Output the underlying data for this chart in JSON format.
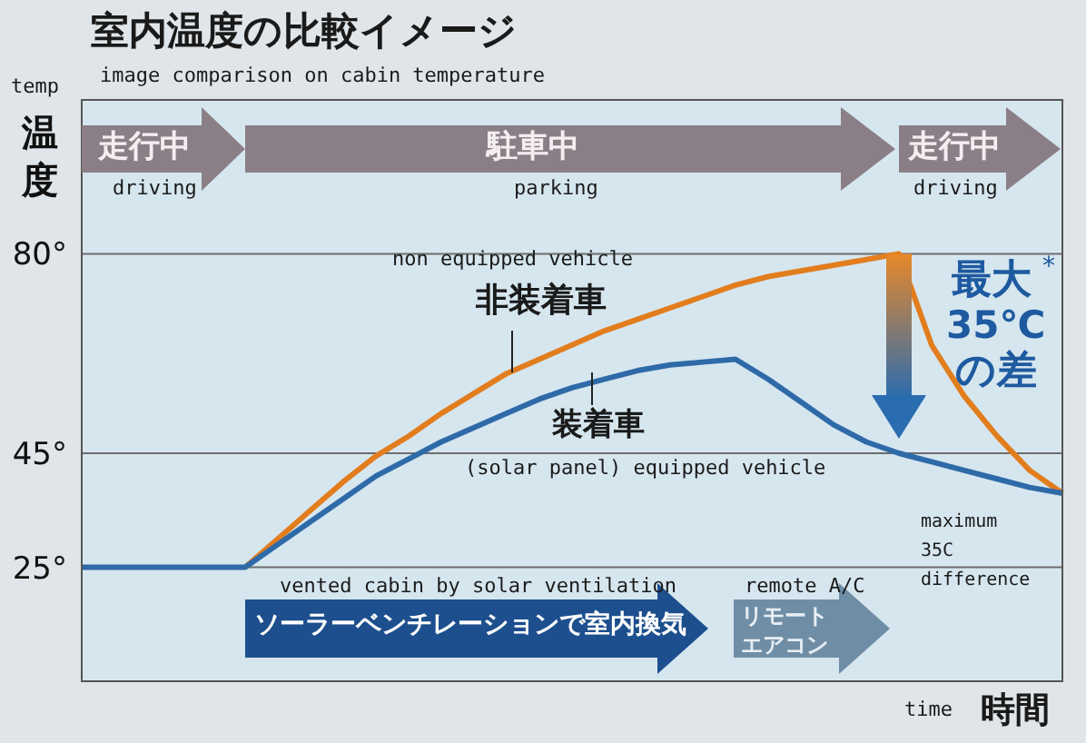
{
  "chart_data": {
    "type": "line",
    "title": "室内温度の比較イメージ",
    "subtitle": "image comparison on cabin temperature",
    "ylabel": "温度",
    "xlabel": "時間",
    "categories": [
      null,
      null,
      null,
      null,
      null,
      null,
      null,
      null,
      null,
      null,
      null,
      null,
      null,
      null,
      null,
      null,
      null,
      null,
      null,
      null,
      null,
      null,
      null,
      null,
      null,
      null,
      null,
      null,
      null,
      null,
      null
    ],
    "ylim": [
      5,
      107
    ],
    "yticks": [
      {
        "value": 25,
        "label": "25°"
      },
      {
        "value": 45,
        "label": "45°"
      },
      {
        "value": 80,
        "label": "80°"
      }
    ],
    "grid": "y",
    "legend": false,
    "marker": "none",
    "line_style": "solid",
    "series": [
      {
        "name": "非装着車",
        "color": "#e27d1e",
        "values": [
          null,
          null,
          null,
          null,
          null,
          25,
          30,
          35,
          40,
          44.5,
          48,
          52,
          55.5,
          59,
          61.5,
          64,
          66.5,
          68.5,
          70.5,
          72.5,
          74.5,
          76,
          77,
          78,
          79,
          80,
          64,
          55,
          48,
          42,
          38
        ]
      },
      {
        "name": "装着車",
        "color": "#2f6aa8",
        "values": [
          25,
          25,
          25,
          25,
          25,
          25,
          29,
          33,
          37,
          41,
          44,
          47,
          49.5,
          52,
          54.5,
          56.5,
          58,
          59.5,
          60.5,
          61,
          61.5,
          58,
          54,
          50,
          47,
          45,
          43.5,
          42,
          40.5,
          39,
          38
        ]
      }
    ],
    "annotations": [
      "temp",
      "走行中",
      "driving",
      "駐車中",
      "parking",
      "走行中",
      "driving",
      "non equipped vehicle",
      "(solar panel) equipped vehicle",
      "最大",
      "35℃",
      "*",
      "の差",
      "maximum",
      "35C",
      "difference",
      "vented cabin by solar ventilation",
      "ソーラーベンチレーションで室内換気",
      "remote A/C",
      "リモート",
      "エアコン",
      "time"
    ]
  }
}
